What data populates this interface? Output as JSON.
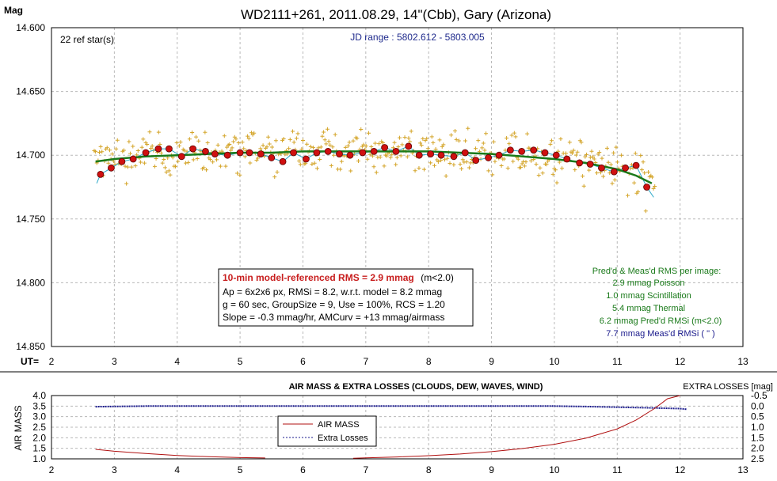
{
  "chart_data": [
    {
      "type": "scatter",
      "title": "WD2111+261, 2011.08.29, 14\"(Cbb), Gary (Arizona)",
      "ylabel": "Mag",
      "xlabel": "UT=",
      "xlim": [
        2,
        13
      ],
      "ylim": [
        14.6,
        14.85
      ],
      "y_inverted": true,
      "x_ticks": [
        "2",
        "3",
        "4",
        "5",
        "6",
        "7",
        "8",
        "9",
        "10",
        "11",
        "12",
        "13"
      ],
      "y_ticks": [
        "14.600",
        "14.650",
        "14.700",
        "14.750",
        "14.800",
        "14.850"
      ],
      "grid": true,
      "annotations": {
        "ref_stars": "22 ref star(s)",
        "jd_range": "JD range : 5802.612 - 5803.005"
      },
      "info_box": {
        "headline": "10-min model-referenced RMS = 2.9 mmag",
        "headline_suffix": "(m<2.0)",
        "lines": [
          "Ap = 6x2x6 px, RMSi = 8.2, w.r.t. model = 8.2 mmag",
          "g = 60 sec, GroupSize = 9, Use = 100%, RCS = 1.20",
          "Slope = -0.3 mmag/hr, AMCurv = +13 mmag/airmass"
        ]
      },
      "rms_summary": [
        "Pred'd & Meas'd RMS per image:",
        "2.9 mmag Poisson",
        "1.0 mmag Scintillation",
        "5.4 mmag Thermal",
        "6.2 mmag Pred'd  RMSi (m<2.0)",
        "7.7 mmag Meas'd RMSi (     \"     )"
      ],
      "series": [
        {
          "name": "group averages",
          "color": "#d01010",
          "x": [
            2.78,
            2.95,
            3.12,
            3.3,
            3.5,
            3.7,
            3.87,
            4.07,
            4.25,
            4.45,
            4.6,
            4.8,
            5.0,
            5.15,
            5.33,
            5.5,
            5.68,
            5.85,
            6.05,
            6.22,
            6.4,
            6.58,
            6.75,
            6.95,
            7.13,
            7.3,
            7.48,
            7.68,
            7.85,
            8.03,
            8.2,
            8.4,
            8.58,
            8.75,
            8.95,
            9.12,
            9.3,
            9.48,
            9.67,
            9.85,
            10.03,
            10.2,
            10.4,
            10.57,
            10.75,
            10.95,
            11.13,
            11.3,
            11.47
          ],
          "y": [
            14.715,
            14.71,
            14.705,
            14.703,
            14.698,
            14.695,
            14.695,
            14.701,
            14.695,
            14.697,
            14.699,
            14.7,
            14.698,
            14.698,
            14.699,
            14.702,
            14.705,
            14.698,
            14.703,
            14.698,
            14.697,
            14.699,
            14.7,
            14.698,
            14.697,
            14.694,
            14.697,
            14.693,
            14.7,
            14.699,
            14.7,
            14.701,
            14.698,
            14.704,
            14.702,
            14.7,
            14.696,
            14.697,
            14.696,
            14.698,
            14.7,
            14.703,
            14.706,
            14.707,
            14.71,
            14.713,
            14.71,
            14.708,
            14.725
          ]
        },
        {
          "name": "model",
          "color": "#1a7a1a",
          "x": [
            2.7,
            3.0,
            3.5,
            4.0,
            4.5,
            5.0,
            5.5,
            6.0,
            6.5,
            7.0,
            7.5,
            8.0,
            8.5,
            9.0,
            9.5,
            10.0,
            10.5,
            11.0,
            11.3,
            11.55
          ],
          "y": [
            14.705,
            14.703,
            14.701,
            14.7,
            14.699,
            14.698,
            14.698,
            14.697,
            14.697,
            14.697,
            14.697,
            14.697,
            14.698,
            14.699,
            14.701,
            14.703,
            14.706,
            14.711,
            14.716,
            14.722
          ]
        }
      ]
    },
    {
      "type": "line",
      "title": "AIR MASS & EXTRA LOSSES (CLOUDS, DEW, WAVES, WIND)",
      "ylabel": "AIR MASS",
      "y2label": "EXTRA LOSSES [mag]",
      "xlim": [
        2,
        13
      ],
      "ylim": [
        1.0,
        4.0
      ],
      "y2lim": [
        -0.5,
        2.5
      ],
      "x_ticks": [
        "2",
        "3",
        "4",
        "5",
        "6",
        "7",
        "8",
        "9",
        "10",
        "11",
        "12",
        "13"
      ],
      "y_ticks": [
        "1.0",
        "1.5",
        "2.0",
        "2.5",
        "3.0",
        "3.5",
        "4.0"
      ],
      "y2_ticks": [
        "-0.5",
        "0.0",
        "0.5",
        "1.0",
        "1.5",
        "2.0",
        "2.5"
      ],
      "legend": {
        "airmass": "AIR MASS",
        "extra": "Extra Losses"
      },
      "series": [
        {
          "name": "AIR MASS",
          "color": "#b01010",
          "x": [
            2.7,
            3.0,
            3.5,
            4.0,
            4.5,
            5.0,
            5.4,
            6.8,
            7.0,
            7.5,
            8.0,
            8.5,
            9.0,
            9.5,
            10.0,
            10.5,
            11.0,
            11.3,
            11.6,
            11.8,
            12.0
          ],
          "y": [
            1.45,
            1.36,
            1.25,
            1.16,
            1.1,
            1.06,
            1.04,
            1.03,
            1.05,
            1.09,
            1.15,
            1.23,
            1.34,
            1.49,
            1.69,
            1.98,
            2.42,
            2.84,
            3.4,
            3.85,
            4.0
          ]
        },
        {
          "name": "Extra Losses",
          "color": "#1a1a8c",
          "x": [
            2.7,
            3.5,
            4.5,
            5.5,
            6.5,
            7.5,
            8.5,
            9.5,
            10.0,
            10.5,
            11.0,
            11.5,
            12.0,
            12.1
          ],
          "y": [
            0.03,
            0.0,
            0.0,
            0.0,
            0.0,
            0.0,
            0.0,
            0.0,
            0.0,
            0.02,
            0.05,
            0.08,
            0.12,
            0.15
          ]
        }
      ]
    }
  ]
}
